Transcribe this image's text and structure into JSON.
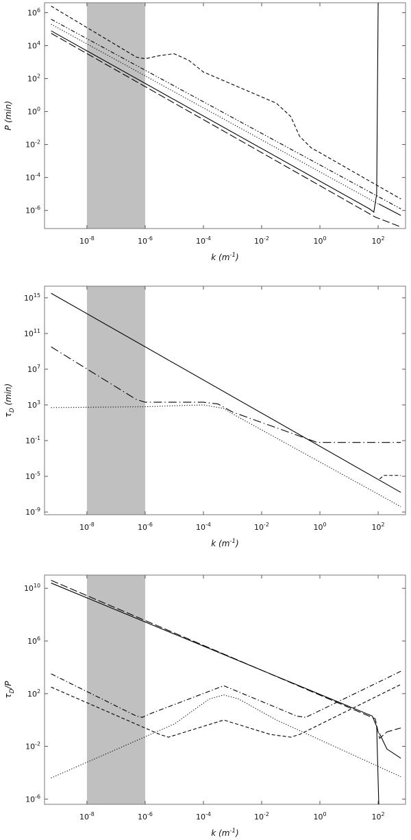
{
  "chart_data": [
    {
      "type": "line",
      "log_x": true,
      "log_y": true,
      "x_label": "k (m^{-1})",
      "y_label": "P (min)",
      "xlim": [
        3.5e-10,
        870
      ],
      "ylim": [
        8e-08,
        4000000.0
      ],
      "xticks": [
        {
          "value": 1e-08,
          "label": "10^{-8}"
        },
        {
          "value": 1e-06,
          "label": "10^{-6}"
        },
        {
          "value": 0.0001,
          "label": "10^{-4}"
        },
        {
          "value": 0.01,
          "label": "10^{-2}"
        },
        {
          "value": 1,
          "label": "10^{0}"
        },
        {
          "value": 100,
          "label": "10^{2}"
        }
      ],
      "yticks": [
        {
          "value": 1e-06,
          "label": "10^{-6}"
        },
        {
          "value": 0.0001,
          "label": "10^{-4}"
        },
        {
          "value": 0.01,
          "label": "10^{-2}"
        },
        {
          "value": 1,
          "label": "10^{0}"
        },
        {
          "value": 100,
          "label": "10^{2}"
        },
        {
          "value": 10000.0,
          "label": "10^{4}"
        },
        {
          "value": 1000000.0,
          "label": "10^{6}"
        }
      ],
      "span": [
        1e-08,
        1e-06
      ],
      "span_color": "#c0c0c0",
      "series": [
        {
          "color": "#000000",
          "dash": "solid",
          "x": [
            5.9e-10,
            50,
            71,
            89,
            100,
            101,
            105,
            600
          ],
          "values": [
            79000.0,
            1.26e-06,
            7.9e-07,
            1e-05,
            4000000.0,
            null,
            2.5e-06,
            5e-07
          ]
        },
        {
          "color": "#000000",
          "dash": "longdash",
          "x": [
            5.9e-10,
            79,
            600
          ],
          "values": [
            56000.0,
            4e-07,
            1e-07
          ]
        },
        {
          "color": "#000000",
          "dash": "dotted",
          "x": [
            5.9e-10,
            100
          ],
          "values": [
            200000.0,
            2.5e-06
          ]
        },
        {
          "color": "#000000",
          "dash": "dashdotdot",
          "x": [
            5.9e-10,
            600
          ],
          "values": [
            400000.0,
            1.26e-06
          ]
        },
        {
          "color": "#000000",
          "dash": "dashed",
          "x": [
            5.9e-10,
            5e-07,
            1e-06,
            3.2e-06,
            1e-05,
            3.2e-05,
            0.0001,
            0.032,
            0.1,
            0.2,
            0.5,
            1,
            600
          ],
          "values": [
            2500000.0,
            2000.0,
            1600.0,
            2500.0,
            3200.0,
            1260.0,
            250,
            3.2,
            0.5,
            0.032,
            0.0063,
            0.0032,
            5e-06
          ]
        }
      ]
    },
    {
      "type": "line",
      "log_x": true,
      "log_y": true,
      "x_label": "k (m^{-1})",
      "y_label": "τ_{D} (min)",
      "xlim": [
        3.5e-10,
        870
      ],
      "ylim": [
        5e-10,
        2e+16
      ],
      "xticks": [
        {
          "value": 1e-08,
          "label": "10^{-8}"
        },
        {
          "value": 1e-06,
          "label": "10^{-6}"
        },
        {
          "value": 0.0001,
          "label": "10^{-4}"
        },
        {
          "value": 0.01,
          "label": "10^{-2}"
        },
        {
          "value": 1,
          "label": "10^{0}"
        },
        {
          "value": 100,
          "label": "10^{2}"
        }
      ],
      "yticks": [
        {
          "value": 1e-09,
          "label": "10^{-9}"
        },
        {
          "value": 1e-05,
          "label": "10^{-5}"
        },
        {
          "value": 0.1,
          "label": "10^{-1}"
        },
        {
          "value": 1000.0,
          "label": "10^{3}"
        },
        {
          "value": 10000000.0,
          "label": "10^{7}"
        },
        {
          "value": 100000000000.0,
          "label": "10^{11}"
        },
        {
          "value": 1000000000000000.0,
          "label": "10^{15}"
        }
      ],
      "span": [
        1e-08,
        1e-06
      ],
      "span_color": "#c0c0c0",
      "series": [
        {
          "color": "#000000",
          "dash": "solid",
          "x": [
            5.9e-10,
            600
          ],
          "values": [
            3200000000000000.0,
            1.6e-07
          ]
        },
        {
          "color": "#000000",
          "dash": "longdashdot",
          "x": [
            5.9e-10,
            5e-07,
            1e-06,
            0.0001,
            0.00032,
            0.001,
            0.8,
            600
          ],
          "values": [
            3200000000.0,
            4000.0,
            2000.0,
            2000.0,
            1260.0,
            160,
            0.063,
            0.063
          ]
        },
        {
          "color": "#000000",
          "dash": "dotted",
          "x": [
            5.9e-10,
            1e-06,
            0.0001,
            0.0005,
            0.001,
            600
          ],
          "values": [
            500,
            630,
            1000.0,
            400,
            100,
            4e-09
          ]
        },
        {
          "color": "#000000",
          "dash": "dashed",
          "x": [
            112,
            158,
            600
          ],
          "values": [
            5e-06,
            1.26e-05,
            1.26e-05
          ]
        }
      ]
    },
    {
      "type": "line",
      "log_x": true,
      "log_y": true,
      "x_label": "k (m^{-1})",
      "y_label": "τ_{D}/P",
      "xlim": [
        3.5e-10,
        870
      ],
      "ylim": [
        4e-07,
        100000000000.0
      ],
      "xticks": [
        {
          "value": 1e-08,
          "label": "10^{-8}"
        },
        {
          "value": 1e-06,
          "label": "10^{-6}"
        },
        {
          "value": 0.0001,
          "label": "10^{-4}"
        },
        {
          "value": 0.01,
          "label": "10^{-2}"
        },
        {
          "value": 1,
          "label": "10^{0}"
        },
        {
          "value": 100,
          "label": "10^{2}"
        }
      ],
      "yticks": [
        {
          "value": 1e-06,
          "label": "10^{-6}"
        },
        {
          "value": 0.01,
          "label": "10^{-2}"
        },
        {
          "value": 100,
          "label": "10^{2}"
        },
        {
          "value": 1000000.0,
          "label": "10^{6}"
        },
        {
          "value": 10000000000.0,
          "label": "10^{10}"
        }
      ],
      "span": [
        1e-08,
        1e-06
      ],
      "span_color": "#c0c0c0",
      "series": [
        {
          "color": "#000000",
          "dash": "solid",
          "x": [
            5.9e-10,
            63,
            89,
            105,
            107,
            110,
            200,
            600
          ],
          "values": [
            25000000000.0,
            2,
            0.32,
            4e-07,
            null,
            0.1,
            0.0063,
            0.00126
          ]
        },
        {
          "color": "#000000",
          "dash": "longdash",
          "x": [
            5.9e-10,
            79,
            112,
            200,
            600
          ],
          "values": [
            40000000000.0,
            1.26,
            0.04,
            0.126,
            0.25
          ]
        },
        {
          "color": "#000000",
          "dash": "dashdot",
          "x": [
            5.9e-10,
            5e-07,
            7.9e-07,
            1.6e-06,
            0.0005,
            0.16,
            0.32,
            0.63,
            600
          ],
          "values": [
            3200.0,
            2,
            1.6,
            3.2,
            400,
            2,
            1.6,
            3.2,
            5000.0
          ]
        },
        {
          "color": "#000000",
          "dash": "dotted",
          "x": [
            5.9e-10,
            1e-05,
            0.00016,
            0.0005,
            0.0016,
            0.032,
            600
          ],
          "values": [
            4e-05,
            0.5,
            40,
            80,
            40,
            1,
            5e-05
          ]
        },
        {
          "color": "#000000",
          "dash": "dashed",
          "x": [
            5.9e-10,
            3.2e-06,
            6.3e-06,
            1.26e-05,
            0.0005,
            0.02,
            0.1,
            0.2,
            600
          ],
          "values": [
            316,
            0.08,
            0.05,
            0.08,
            1,
            0.08,
            0.05,
            0.08,
            500
          ]
        }
      ]
    }
  ]
}
